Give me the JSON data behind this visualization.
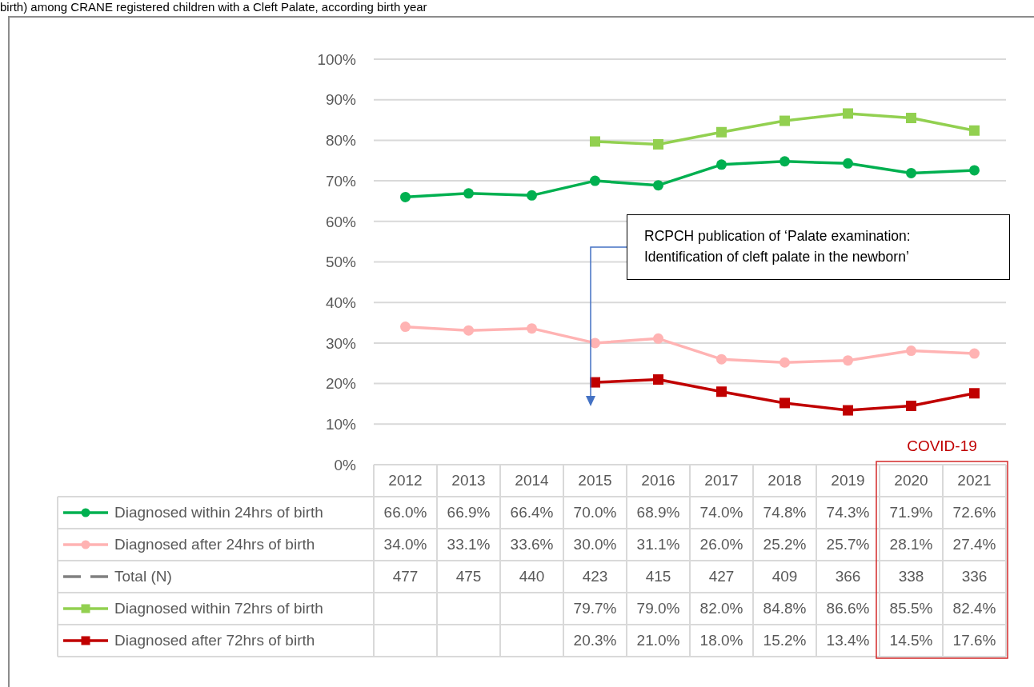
{
  "chart_data": {
    "type": "line",
    "title": "birth) among CRANE registered children with a Cleft Palate, according birth year",
    "categories": [
      "2012",
      "2013",
      "2014",
      "2015",
      "2016",
      "2017",
      "2018",
      "2019",
      "2020",
      "2021"
    ],
    "series": [
      {
        "name": "Diagnosed within 24hrs of birth",
        "color": "#00b050",
        "marker": "circle",
        "values": [
          66.0,
          66.9,
          66.4,
          70.0,
          68.9,
          74.0,
          74.8,
          74.3,
          71.9,
          72.6
        ],
        "value_labels": [
          "66.0%",
          "66.9%",
          "66.4%",
          "70.0%",
          "68.9%",
          "74.0%",
          "74.8%",
          "74.3%",
          "71.9%",
          "72.6%"
        ]
      },
      {
        "name": "Diagnosed after 24hrs of birth",
        "color": "#ffb3b3",
        "marker": "circle",
        "values": [
          34.0,
          33.1,
          33.6,
          30.0,
          31.1,
          26.0,
          25.2,
          25.7,
          28.1,
          27.4
        ],
        "value_labels": [
          "34.0%",
          "33.1%",
          "33.6%",
          "30.0%",
          "31.1%",
          "26.0%",
          "25.2%",
          "25.7%",
          "28.1%",
          "27.4%"
        ]
      },
      {
        "name": "Total (N)",
        "color": "#808080",
        "marker": "none",
        "line_style": "dashed",
        "values": [
          null,
          null,
          null,
          null,
          null,
          null,
          null,
          null,
          null,
          null
        ],
        "value_labels": [
          "477",
          "475",
          "440",
          "423",
          "415",
          "427",
          "409",
          "366",
          "338",
          "336"
        ]
      },
      {
        "name": "Diagnosed within 72hrs of birth",
        "color": "#92d050",
        "marker": "square",
        "values": [
          null,
          null,
          null,
          79.7,
          79.0,
          82.0,
          84.8,
          86.6,
          85.5,
          82.4
        ],
        "value_labels": [
          null,
          null,
          null,
          "79.7%",
          "79.0%",
          "82.0%",
          "84.8%",
          "86.6%",
          "85.5%",
          "82.4%"
        ]
      },
      {
        "name": "Diagnosed after 72hrs of birth",
        "color": "#c00000",
        "marker": "square",
        "values": [
          null,
          null,
          null,
          20.3,
          21.0,
          18.0,
          15.2,
          13.4,
          14.5,
          17.6
        ],
        "value_labels": [
          null,
          null,
          null,
          "20.3%",
          "21.0%",
          "18.0%",
          "15.2%",
          "13.4%",
          "14.5%",
          "17.6%"
        ]
      }
    ],
    "ylim": [
      0,
      100
    ],
    "yticks": [
      {
        "value": 0,
        "label": "0%"
      },
      {
        "value": 10,
        "label": "10%"
      },
      {
        "value": 20,
        "label": "20%"
      },
      {
        "value": 30,
        "label": "30%"
      },
      {
        "value": 40,
        "label": "40%"
      },
      {
        "value": 50,
        "label": "50%"
      },
      {
        "value": 60,
        "label": "60%"
      },
      {
        "value": 70,
        "label": "70%"
      },
      {
        "value": 80,
        "label": "80%"
      },
      {
        "value": 90,
        "label": "90%"
      },
      {
        "value": 100,
        "label": "100%"
      }
    ],
    "grid": "y",
    "legend": "bottom",
    "annotations": [
      "RCPCH publication of ‘Palate examination: Identification of cleft palate in the newborn’",
      "COVID-19"
    ]
  }
}
